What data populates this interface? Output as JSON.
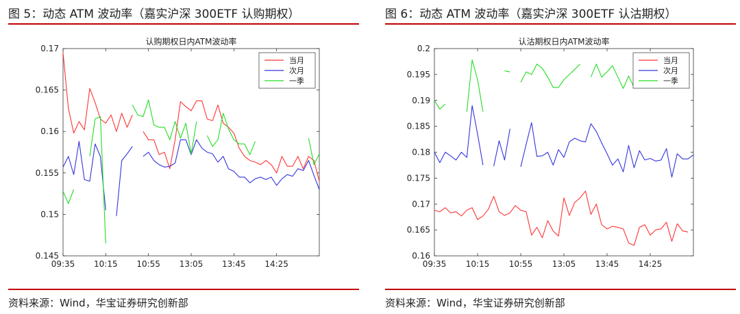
{
  "figures": [
    {
      "caption": "图 5：动态 ATM 波动率（嘉实沪深 300ETF 认购期权）",
      "source": "资料来源：Wind，华宝证券研究创新部"
    },
    {
      "caption": "图 6：动态 ATM 波动率（嘉实沪深 300ETF 认沽期权）",
      "source": "资料来源：Wind，华宝证券研究创新部"
    }
  ],
  "chart_data": [
    {
      "type": "line",
      "title": "认购期权日内ATM波动率",
      "xlabel": "",
      "ylabel": "",
      "x_ticks": [
        "09:35",
        "10:15",
        "10:55",
        "13:05",
        "13:45",
        "14:25"
      ],
      "x_range": [
        0,
        48
      ],
      "x_tick_positions": [
        0,
        8,
        16,
        24,
        32,
        40
      ],
      "ylim": [
        0.145,
        0.17
      ],
      "y_ticks": [
        0.145,
        0.15,
        0.155,
        0.16,
        0.165,
        0.17
      ],
      "grid": false,
      "legend_position": "top-right",
      "series": [
        {
          "name": "当月",
          "color": "#ff3333",
          "values": [
            0.1695,
            0.1628,
            0.1598,
            0.1612,
            0.1602,
            0.1652,
            0.1635,
            0.1615,
            0.161,
            0.162,
            0.16,
            0.1622,
            0.1605,
            0.162,
            null,
            0.16,
            0.159,
            0.159,
            0.1572,
            0.1575,
            0.1555,
            0.159,
            0.1636,
            0.163,
            0.1625,
            0.1637,
            0.1637,
            0.1615,
            0.1613,
            0.1632,
            0.161,
            0.1605,
            0.1598,
            0.158,
            0.157,
            0.1565,
            0.1563,
            0.156,
            0.1565,
            0.156,
            0.155,
            0.157,
            0.1558,
            0.1558,
            0.157,
            0.1555,
            0.157,
            0.1565,
            0.154
          ]
        },
        {
          "name": "次月",
          "color": "#3333dd",
          "values": [
            0.1557,
            0.157,
            0.1548,
            0.1588,
            0.1542,
            0.154,
            0.1585,
            0.157,
            0.1505,
            null,
            0.1498,
            0.1565,
            0.1573,
            0.1582,
            null,
            0.157,
            0.1575,
            0.1565,
            0.156,
            0.1557,
            0.1558,
            0.1562,
            0.159,
            0.159,
            0.1572,
            0.159,
            0.158,
            0.1575,
            0.1573,
            0.1563,
            0.157,
            0.1555,
            0.1552,
            0.1545,
            0.1545,
            0.1538,
            0.1543,
            0.1545,
            0.1542,
            0.1545,
            0.1535,
            0.1543,
            0.1548,
            0.1546,
            0.1555,
            0.1553,
            0.1565,
            0.1547,
            0.153
          ]
        },
        {
          "name": "一季",
          "color": "#22dd22",
          "values": [
            0.1528,
            0.1513,
            0.153,
            null,
            null,
            0.157,
            0.1615,
            0.1618,
            0.1465,
            null,
            null,
            null,
            null,
            0.1632,
            0.162,
            0.1618,
            0.1638,
            0.1608,
            0.1605,
            0.1605,
            0.159,
            0.1612,
            0.1592,
            0.161,
            0.1573,
            0.1612,
            null,
            0.1595,
            0.1582,
            0.159,
            0.1622,
            0.1603,
            0.159,
            0.1585,
            0.1585,
            0.1572,
            0.1588,
            null,
            null,
            null,
            null,
            null,
            null,
            null,
            null,
            null,
            0.1592,
            0.156,
            0.1573
          ]
        }
      ]
    },
    {
      "type": "line",
      "title": "认沽期权日内ATM波动率",
      "xlabel": "",
      "ylabel": "",
      "x_ticks": [
        "09:35",
        "10:15",
        "10:55",
        "13:05",
        "13:45",
        "14:25"
      ],
      "x_range": [
        0,
        48
      ],
      "x_tick_positions": [
        0,
        8,
        16,
        24,
        32,
        40
      ],
      "ylim": [
        0.16,
        0.2
      ],
      "y_ticks": [
        0.16,
        0.165,
        0.17,
        0.175,
        0.18,
        0.185,
        0.19,
        0.195,
        0.2
      ],
      "grid": false,
      "legend_position": "top-right",
      "series": [
        {
          "name": "当月",
          "color": "#ff3333",
          "values": [
            0.1688,
            0.1685,
            0.1693,
            0.1683,
            0.1685,
            0.1677,
            0.1688,
            0.1693,
            0.167,
            0.1677,
            0.169,
            0.1715,
            0.1685,
            0.1678,
            0.1683,
            0.1697,
            0.1688,
            0.1685,
            0.164,
            0.1655,
            0.1635,
            0.1668,
            0.1648,
            0.1638,
            0.1712,
            0.1678,
            0.1703,
            0.1712,
            0.1725,
            0.168,
            0.17,
            0.166,
            0.1652,
            0.1657,
            0.1655,
            0.1652,
            0.1625,
            0.162,
            0.1655,
            0.166,
            0.164,
            0.165,
            0.1652,
            0.1665,
            0.1628,
            0.1662,
            0.1648,
            0.1646,
            null
          ]
        },
        {
          "name": "次月",
          "color": "#3333dd",
          "values": [
            0.18,
            0.178,
            0.18,
            0.1793,
            0.1785,
            0.18,
            0.179,
            0.189,
            0.1835,
            0.1775,
            null,
            0.1773,
            0.1822,
            0.1785,
            0.1845,
            null,
            0.1772,
            0.1815,
            0.1857,
            0.1792,
            0.1793,
            0.18,
            0.1775,
            0.1805,
            0.179,
            0.182,
            0.1827,
            0.1822,
            0.182,
            0.1855,
            0.184,
            0.1818,
            0.1797,
            0.1775,
            0.1787,
            0.1762,
            0.1813,
            0.177,
            0.1803,
            0.1785,
            0.1788,
            0.1783,
            0.1785,
            0.1807,
            0.1752,
            0.1797,
            0.1787,
            0.1787,
            0.1795
          ]
        },
        {
          "name": "一季",
          "color": "#22dd22",
          "values": [
            0.19,
            0.1883,
            0.1893,
            null,
            null,
            null,
            0.1878,
            0.1978,
            0.194,
            0.1878,
            null,
            null,
            null,
            0.1957,
            0.1955,
            null,
            0.1935,
            0.1955,
            0.195,
            0.197,
            0.1962,
            0.1945,
            0.1925,
            0.1925,
            0.194,
            0.195,
            0.196,
            0.197,
            null,
            0.1945,
            0.197,
            0.1945,
            0.1955,
            0.1967,
            0.1945,
            0.1923,
            0.1947,
            0.1925,
            0.1943,
            null,
            null,
            null,
            null,
            null,
            null,
            null,
            null,
            null,
            null
          ]
        }
      ]
    }
  ]
}
